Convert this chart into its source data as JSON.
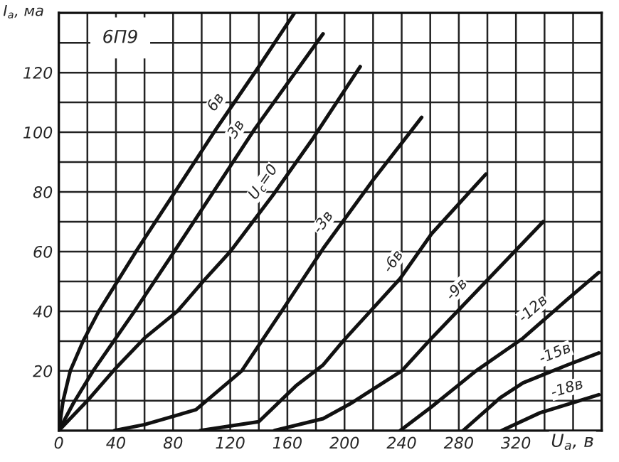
{
  "chart_data": {
    "type": "line",
    "title": "6П9",
    "xlabel": "U$_{а}$, в",
    "ylabel": "I$_{а}$, ма",
    "xlim": [
      0,
      380
    ],
    "ylim": [
      0,
      140
    ],
    "xticks": [
      0,
      {
        "value": 20,
        "label": null
      },
      40,
      {
        "value": 60,
        "label": null
      },
      80,
      {
        "value": 100,
        "label": null
      },
      120,
      {
        "value": 140,
        "label": null
      },
      160,
      {
        "value": 180,
        "label": null
      },
      200,
      {
        "value": 220,
        "label": null
      },
      240,
      {
        "value": 260,
        "label": null
      },
      280,
      {
        "value": 300,
        "label": null
      },
      320,
      {
        "value": 340,
        "label": null
      },
      {
        "value": 360,
        "label": null
      }
    ],
    "yticks": [
      {
        "value": 10,
        "label": null
      },
      20,
      {
        "value": 30,
        "label": null
      },
      40,
      {
        "value": 50,
        "label": null
      },
      60,
      {
        "value": 70,
        "label": null
      },
      80,
      {
        "value": 90,
        "label": null
      },
      100,
      {
        "value": 110,
        "label": null
      },
      120,
      {
        "value": 130,
        "label": null
      }
    ],
    "grid": true,
    "legend": false,
    "marker": "none",
    "line_style": "solid",
    "series": [
      {
        "name": "6в",
        "color": "#111111",
        "x": [
          0,
          3,
          8,
          17,
          28,
          54,
          80,
          110,
          140,
          165
        ],
        "values": [
          0,
          10,
          20,
          30,
          40,
          60,
          79,
          101,
          122,
          140
        ]
      },
      {
        "name": "3в",
        "color": "#111111",
        "x": [
          0,
          10,
          24,
          53,
          78,
          100,
          137,
          185
        ],
        "values": [
          0,
          9,
          20,
          40,
          58,
          74,
          101,
          133
        ]
      },
      {
        "name": "U$_{с}$=0",
        "color": "#111111",
        "x": [
          0,
          20,
          40,
          60,
          83,
          101,
          120,
          150,
          178,
          211
        ],
        "values": [
          0,
          10,
          21,
          31,
          40,
          50,
          60,
          79,
          98,
          122
        ]
      },
      {
        "name": "-3в",
        "color": "#111111",
        "x": [
          39,
          60,
          96,
          128,
          156,
          185,
          220,
          254
        ],
        "values": [
          0,
          2,
          7,
          20,
          40,
          61,
          84,
          105
        ]
      },
      {
        "name": "-6в",
        "color": "#111111",
        "x": [
          99,
          140,
          166,
          185,
          199,
          239,
          261,
          299
        ],
        "values": [
          0,
          3,
          15,
          22,
          30,
          51,
          66,
          86
        ]
      },
      {
        "name": "-9в",
        "color": "#111111",
        "x": [
          151,
          185,
          204,
          240,
          261,
          299,
          339
        ],
        "values": [
          0,
          4,
          9,
          20,
          31,
          50,
          70
        ]
      },
      {
        "name": "-12в",
        "color": "#111111",
        "x": [
          239,
          261,
          292,
          325,
          356,
          378
        ],
        "values": [
          0,
          8,
          20,
          31,
          44,
          53
        ]
      },
      {
        "name": "-15в",
        "color": "#111111",
        "x": [
          283,
          309,
          325,
          356,
          378
        ],
        "values": [
          0,
          11,
          16,
          22,
          26
        ]
      },
      {
        "name": "-18в",
        "color": "#111111",
        "x": [
          310,
          337,
          378
        ],
        "values": [
          0,
          6,
          12
        ]
      }
    ]
  }
}
